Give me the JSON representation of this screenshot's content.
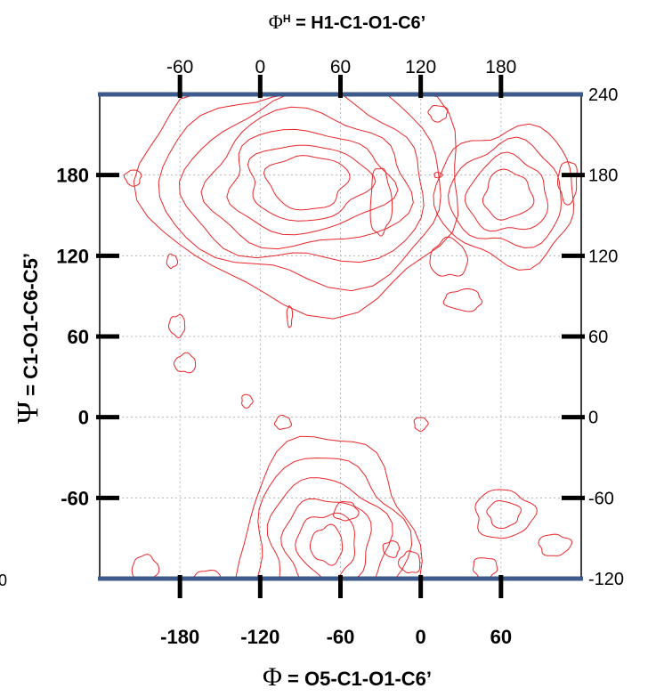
{
  "chart_data": {
    "type": "contour",
    "title_top": {
      "symbol": "Φ",
      "superscript": "H",
      "text": " = H1-C1-O1-C6’"
    },
    "xlabel_bottom": {
      "symbol": "Φ",
      "text": " = O5-C1-O1-C6’"
    },
    "ylabel_left": {
      "symbol": "Ψ",
      "text": " = C1-O1-C6-C5’"
    },
    "x_bottom": {
      "range": [
        -240,
        120
      ],
      "ticks": [
        -180,
        -120,
        -60,
        0,
        60
      ],
      "labels": [
        "-180",
        "-120",
        "-60",
        "0",
        "60"
      ]
    },
    "x_top": {
      "ticks": [
        -60,
        0,
        60,
        120,
        180
      ],
      "labels": [
        "-60",
        "0",
        "60",
        "120",
        "180"
      ]
    },
    "y_left": {
      "range": [
        -120,
        240
      ],
      "ticks": [
        -60,
        0,
        60,
        120,
        180
      ],
      "labels": [
        "-60",
        "0",
        "60",
        "120",
        "180"
      ]
    },
    "y_right": {
      "ticks": [
        -120,
        -60,
        0,
        60,
        120,
        180,
        240
      ],
      "labels": [
        "-120",
        "-60",
        "0",
        "60",
        "120",
        "180",
        "240"
      ]
    },
    "edge_label_left": "0",
    "grid": true,
    "contour_color": "#e8262a",
    "frame_color": "#3d5a8c",
    "regions": [
      {
        "name": "upper-main",
        "center": [
          -85,
          175
        ],
        "levels": [
          [
            30,
            20
          ],
          [
            45,
            28
          ],
          [
            60,
            38
          ],
          [
            75,
            50
          ],
          [
            90,
            62
          ],
          [
            105,
            75
          ],
          [
            120,
            90
          ]
        ]
      },
      {
        "name": "upper-right",
        "center": [
          65,
          165
        ],
        "levels": [
          [
            18,
            18
          ],
          [
            30,
            28
          ],
          [
            42,
            38
          ],
          [
            52,
            50
          ]
        ]
      },
      {
        "name": "lower-main",
        "center": [
          -70,
          -95
        ],
        "levels": [
          [
            12,
            14
          ],
          [
            22,
            24
          ],
          [
            32,
            36
          ],
          [
            44,
            50
          ],
          [
            56,
            64
          ],
          [
            66,
            78
          ]
        ]
      },
      {
        "name": "lower-right",
        "center": [
          62,
          -72
        ],
        "levels": [
          [
            12,
            10
          ],
          [
            22,
            18
          ]
        ]
      }
    ],
    "small_features": [
      {
        "x": -98,
        "y": 75,
        "rx": 2,
        "ry": 8
      },
      {
        "x": -130,
        "y": 12,
        "rx": 4,
        "ry": 5
      },
      {
        "x": -103,
        "y": -4,
        "rx": 6,
        "ry": 5
      },
      {
        "x": -176,
        "y": 40,
        "rx": 8,
        "ry": 7
      },
      {
        "x": -182,
        "y": 68,
        "rx": 6,
        "ry": 8
      },
      {
        "x": 13,
        "y": 226,
        "rx": 7,
        "ry": 6
      },
      {
        "x": 13,
        "y": 180,
        "rx": 3,
        "ry": 2
      },
      {
        "x": -56,
        "y": -70,
        "rx": 9,
        "ry": 7
      },
      {
        "x": -8,
        "y": -108,
        "rx": 8,
        "ry": 8
      },
      {
        "x": -22,
        "y": -98,
        "rx": 6,
        "ry": 6
      },
      {
        "x": 48,
        "y": -112,
        "rx": 9,
        "ry": 8
      },
      {
        "x": 2,
        "y": -130,
        "rx": 8,
        "ry": 6
      },
      {
        "x": -206,
        "y": -112,
        "rx": 10,
        "ry": 9
      },
      {
        "x": -160,
        "y": -122,
        "rx": 12,
        "ry": 8
      },
      {
        "x": -215,
        "y": 178,
        "rx": 6,
        "ry": 6
      },
      {
        "x": 0,
        "y": -5,
        "rx": 5,
        "ry": 5
      },
      {
        "x": -186,
        "y": 116,
        "rx": 4,
        "ry": 5
      },
      {
        "x": 21,
        "y": 118,
        "rx": 14,
        "ry": 14
      },
      {
        "x": 32,
        "y": 87,
        "rx": 14,
        "ry": 8
      },
      {
        "x": 110,
        "y": 175,
        "rx": 7,
        "ry": 16
      },
      {
        "x": 100,
        "y": -95,
        "rx": 12,
        "ry": 8
      },
      {
        "x": -30,
        "y": 160,
        "rx": 8,
        "ry": 25
      }
    ]
  }
}
